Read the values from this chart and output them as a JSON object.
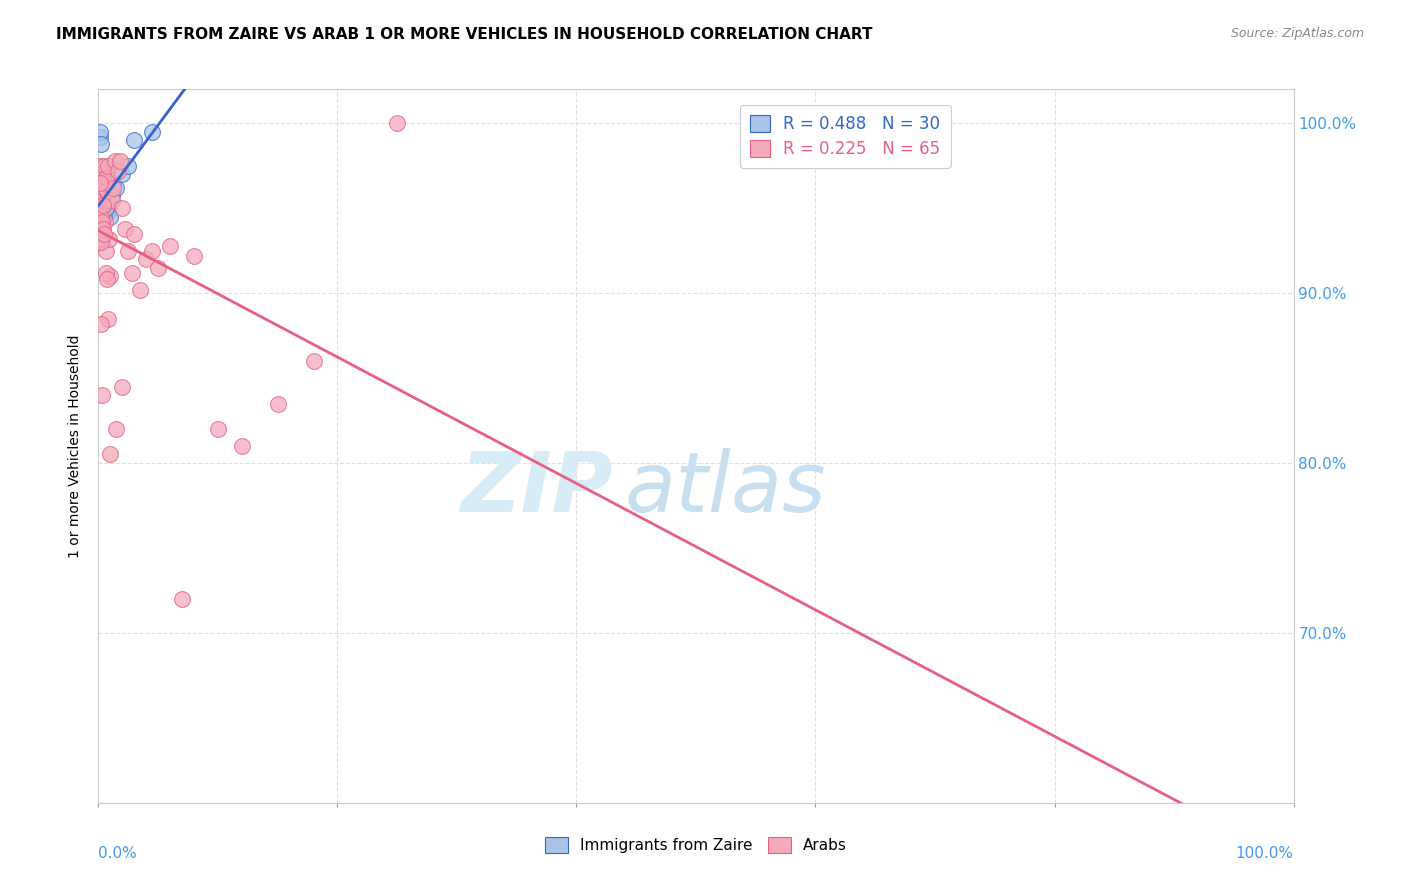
{
  "title": "IMMIGRANTS FROM ZAIRE VS ARAB 1 OR MORE VEHICLES IN HOUSEHOLD CORRELATION CHART",
  "source": "Source: ZipAtlas.com",
  "ylabel": "1 or more Vehicles in Household",
  "legend_label1": "Immigrants from Zaire",
  "legend_label2": "Arabs",
  "r1": 0.488,
  "n1": 30,
  "r2": 0.225,
  "n2": 65,
  "color_zaire": "#aac4e8",
  "color_arab": "#f5aabb",
  "line_color_zaire": "#3465cc",
  "line_color_arab": "#e86080",
  "zaire_x": [
    0.1,
    0.15,
    0.2,
    0.25,
    0.3,
    0.3,
    0.35,
    0.4,
    0.5,
    0.6,
    0.7,
    0.8,
    0.9,
    1.0,
    1.1,
    1.2,
    1.5,
    2.0,
    2.5,
    3.0,
    0.05,
    0.08,
    0.12,
    0.18,
    0.22,
    0.28,
    0.32,
    0.45,
    0.6,
    4.5
  ],
  "zaire_y": [
    99.2,
    99.5,
    98.8,
    97.0,
    95.5,
    96.0,
    96.5,
    95.0,
    96.8,
    97.2,
    95.5,
    94.8,
    95.2,
    94.5,
    95.8,
    96.5,
    96.2,
    97.0,
    97.5,
    99.0,
    93.5,
    93.0,
    93.8,
    94.2,
    93.5,
    94.0,
    93.2,
    94.5,
    95.0,
    99.5
  ],
  "arab_x": [
    0.05,
    0.08,
    0.1,
    0.12,
    0.15,
    0.18,
    0.2,
    0.22,
    0.25,
    0.28,
    0.3,
    0.32,
    0.35,
    0.38,
    0.4,
    0.45,
    0.5,
    0.55,
    0.6,
    0.65,
    0.7,
    0.75,
    0.8,
    0.9,
    1.0,
    1.1,
    1.2,
    1.4,
    1.6,
    1.8,
    2.0,
    2.2,
    2.5,
    2.8,
    3.0,
    3.5,
    4.0,
    5.0,
    6.0,
    8.0,
    10.0,
    12.0,
    15.0,
    18.0,
    0.05,
    0.1,
    0.15,
    0.2,
    0.25,
    0.3,
    0.35,
    0.4,
    0.5,
    0.6,
    0.7,
    0.8,
    1.0,
    1.5,
    2.0,
    25.0,
    0.12,
    0.22,
    0.32,
    4.5,
    7.0
  ],
  "arab_y": [
    94.0,
    95.5,
    94.8,
    96.2,
    97.5,
    96.8,
    97.2,
    96.5,
    97.0,
    95.8,
    96.0,
    95.5,
    95.8,
    96.2,
    97.0,
    97.5,
    96.5,
    94.2,
    92.5,
    96.8,
    95.5,
    96.0,
    97.5,
    93.2,
    91.0,
    95.5,
    96.2,
    97.8,
    97.2,
    97.8,
    95.0,
    93.8,
    92.5,
    91.2,
    93.5,
    90.2,
    92.0,
    91.5,
    92.8,
    92.2,
    82.0,
    81.0,
    83.5,
    86.0,
    93.2,
    94.0,
    93.8,
    94.5,
    93.0,
    94.2,
    93.8,
    95.2,
    93.5,
    91.2,
    90.8,
    88.5,
    80.5,
    82.0,
    84.5,
    100.0,
    96.5,
    88.2,
    84.0,
    92.5,
    72.0
  ],
  "xlim": [
    0,
    100
  ],
  "ylim": [
    60,
    102
  ],
  "bg_color": "#ffffff",
  "grid_color": "#e0e0e0",
  "watermark_zip": "ZIP",
  "watermark_atlas": "atlas"
}
